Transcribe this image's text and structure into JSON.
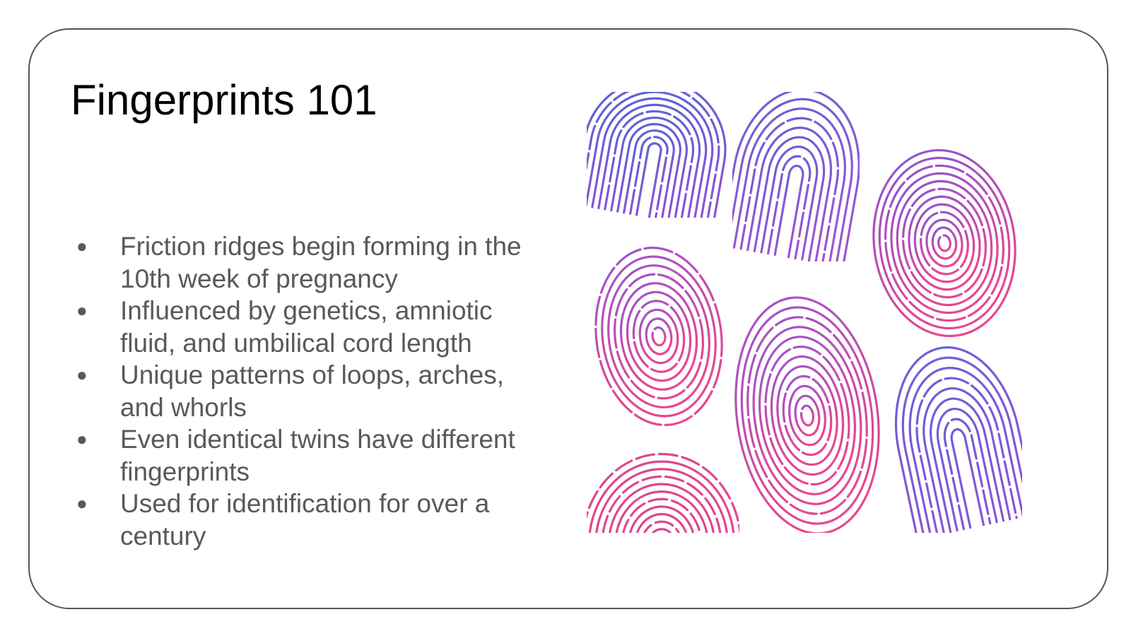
{
  "slide": {
    "title": "Fingerprints 101",
    "bullets": [
      "Friction ridges begin forming in the 10th week of pregnancy",
      "Influenced by genetics, amniotic fluid, and umbilical cord length",
      "Unique patterns of loops, arches, and whorls",
      "Even identical twins have different fingerprints",
      "Used for identification for over a century"
    ],
    "bullet_glyph": "●"
  },
  "illustration": {
    "icon": "fingerprint-pattern-icon",
    "colors": {
      "blue": "#5b63d6",
      "purple": "#9b4fd0",
      "pink": "#e8468f"
    },
    "prints": [
      {
        "name": "top-left-print",
        "pattern": "loop",
        "gradient": [
          "#5b63d6",
          "#8a55d4"
        ]
      },
      {
        "name": "top-middle-print",
        "pattern": "loop",
        "gradient": [
          "#6a5fd8",
          "#9b55cf"
        ]
      },
      {
        "name": "top-right-print",
        "pattern": "whorl",
        "gradient": [
          "#8a55d4",
          "#e8468f"
        ]
      },
      {
        "name": "middle-left-print",
        "pattern": "whorl",
        "gradient": [
          "#9b55cf",
          "#e8468f"
        ]
      },
      {
        "name": "center-print",
        "pattern": "whorl",
        "gradient": [
          "#9b55cf",
          "#e8468f"
        ]
      },
      {
        "name": "bottom-left-print",
        "pattern": "arch",
        "gradient": [
          "#d9478f",
          "#e8468f"
        ]
      },
      {
        "name": "bottom-right-print",
        "pattern": "loop",
        "gradient": [
          "#6a5fd8",
          "#8a55d4"
        ]
      }
    ]
  }
}
